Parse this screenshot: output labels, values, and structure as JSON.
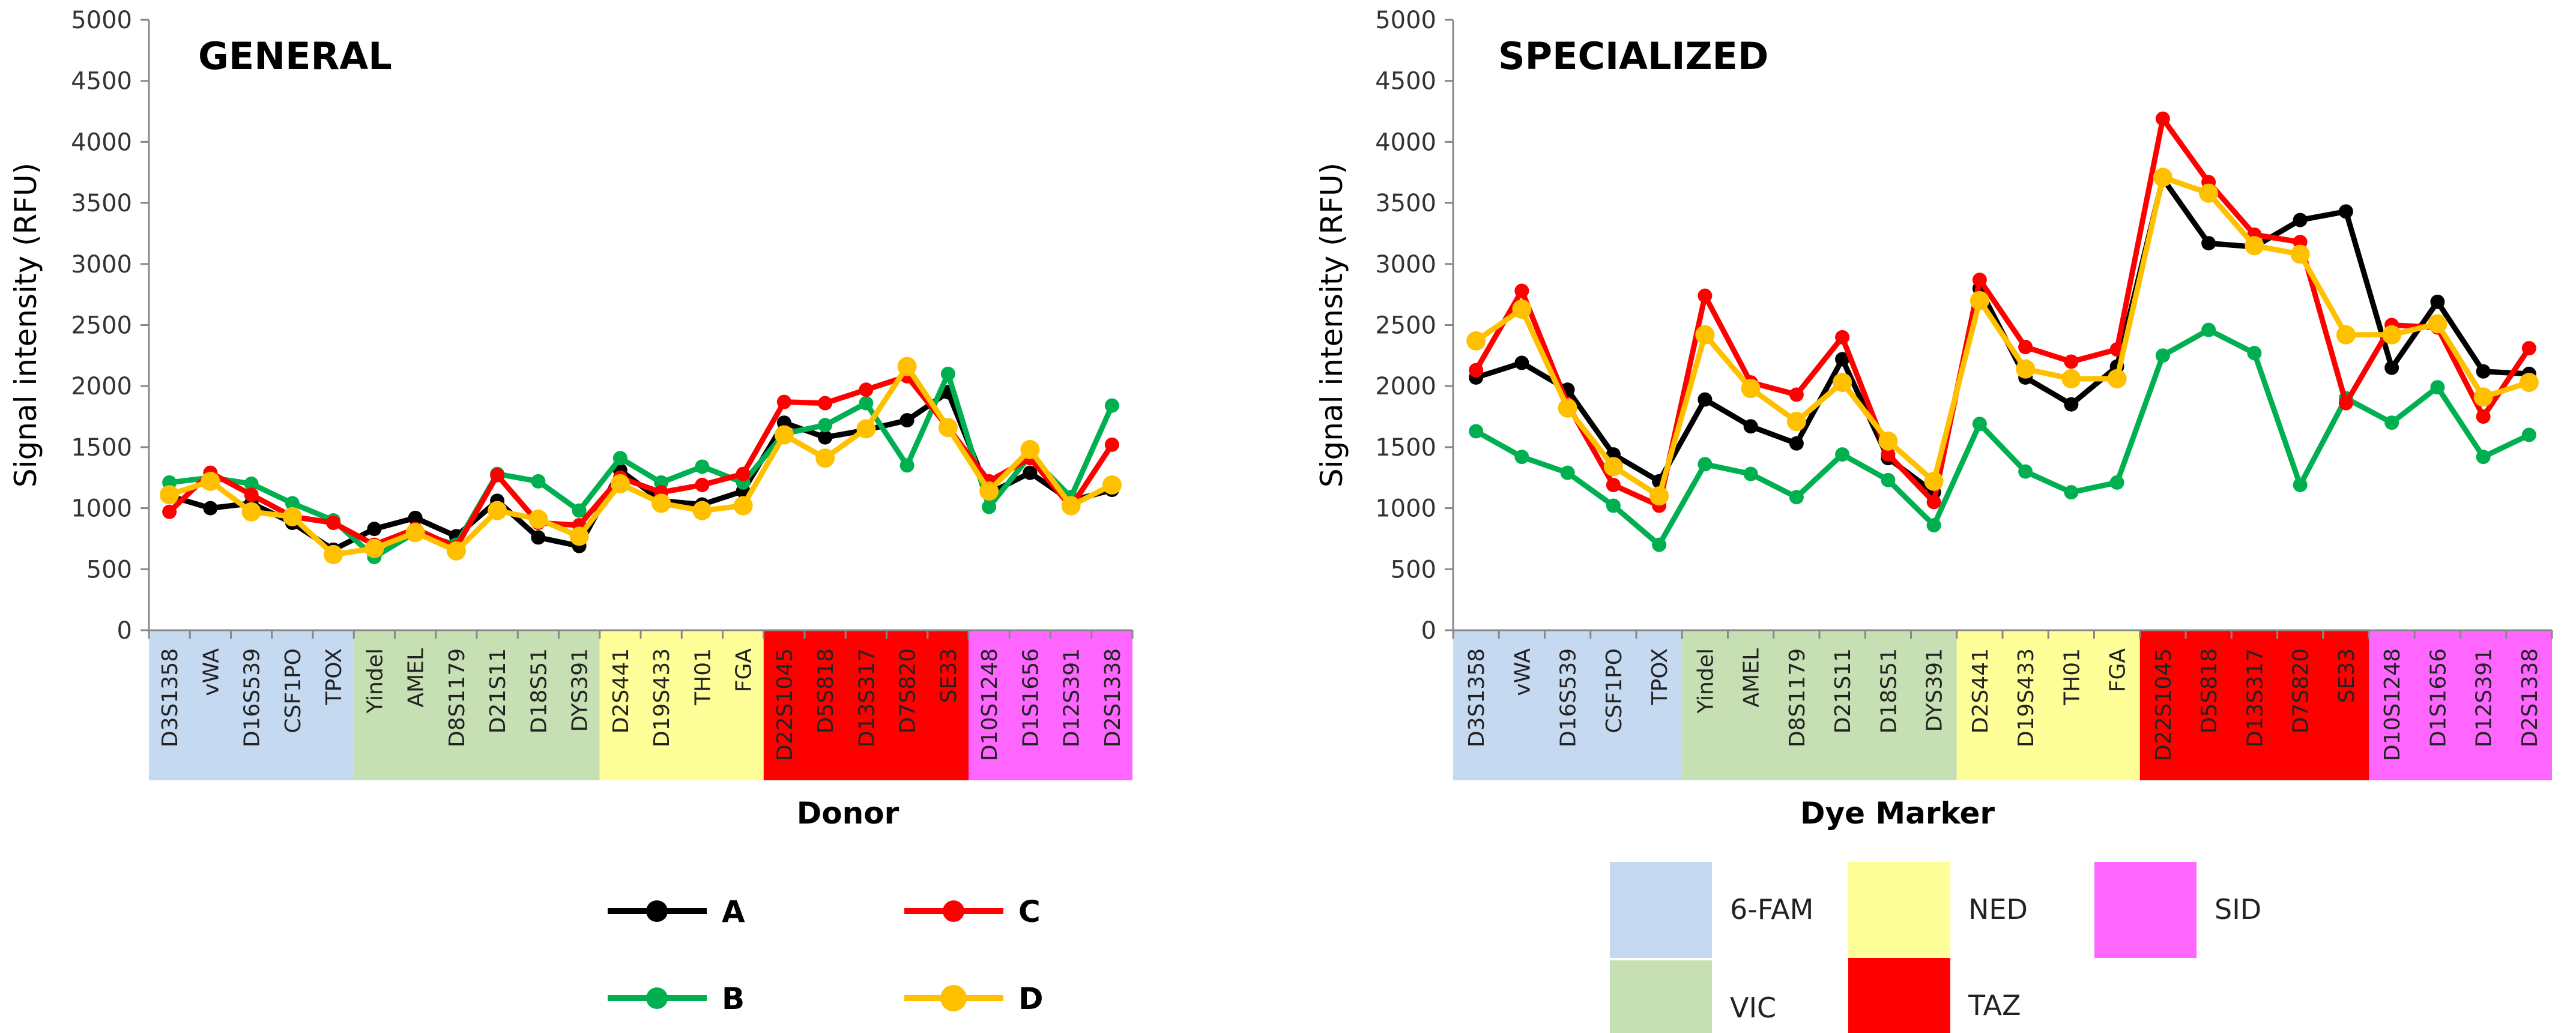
{
  "chart_data": [
    {
      "type": "line",
      "title": "GENERAL",
      "xlabel": "",
      "ylabel": "Signal intensity (RFU)",
      "ylim": [
        0,
        5000
      ],
      "yticks": [
        "0",
        "500",
        "1000",
        "1500",
        "2000",
        "2500",
        "3000",
        "3500",
        "4000",
        "4500",
        "5000"
      ],
      "categories": [
        "D3S1358",
        "vWA",
        "D16S539",
        "CSF1PO",
        "TPOX",
        "Yindel",
        "AMEL",
        "D8S1179",
        "D21S11",
        "D18S51",
        "DYS391",
        "D2S441",
        "D19S433",
        "TH01",
        "FGA",
        "D22S1045",
        "D5S818",
        "D13S317",
        "D7S820",
        "SE33",
        "D10S1248",
        "D1S1656",
        "D12S391",
        "D2S1338"
      ],
      "series": [
        {
          "name": "A",
          "color": "#000000",
          "values": [
            1100,
            1000,
            1040,
            880,
            660,
            830,
            920,
            770,
            1060,
            760,
            690,
            1310,
            1060,
            1030,
            1140,
            1700,
            1580,
            1640,
            1720,
            1950,
            1120,
            1290,
            1060,
            1150
          ]
        },
        {
          "name": "B",
          "color": "#00b050",
          "values": [
            1210,
            1250,
            1200,
            1040,
            900,
            600,
            800,
            700,
            1280,
            1220,
            980,
            1410,
            1210,
            1340,
            1210,
            1610,
            1680,
            1860,
            1350,
            2100,
            1010,
            1430,
            1090,
            1840
          ]
        },
        {
          "name": "C",
          "color": "#ff0000",
          "values": [
            970,
            1290,
            1110,
            930,
            880,
            700,
            830,
            680,
            1270,
            880,
            860,
            1250,
            1130,
            1190,
            1280,
            1870,
            1860,
            1970,
            2080,
            1660,
            1220,
            1410,
            1010,
            1520
          ]
        },
        {
          "name": "D",
          "color": "#ffc000",
          "values": [
            1110,
            1220,
            970,
            930,
            620,
            670,
            800,
            650,
            980,
            910,
            770,
            1200,
            1040,
            980,
            1020,
            1600,
            1410,
            1650,
            2160,
            1660,
            1140,
            1480,
            1020,
            1190
          ]
        }
      ]
    },
    {
      "type": "line",
      "title": "SPECIALIZED",
      "xlabel": "",
      "ylabel": "Signal intensity (RFU)",
      "ylim": [
        0,
        5000
      ],
      "yticks": [
        "0",
        "500",
        "1000",
        "1500",
        "2000",
        "2500",
        "3000",
        "3500",
        "4000",
        "4500",
        "5000"
      ],
      "categories": [
        "D3S1358",
        "vWA",
        "D16S539",
        "CSF1PO",
        "TPOX",
        "Yindel",
        "AMEL",
        "D8S1179",
        "D21S11",
        "D18S51",
        "DYS391",
        "D2S441",
        "D19S433",
        "TH01",
        "FGA",
        "D22S1045",
        "D5S818",
        "D13S317",
        "D7S820",
        "SE33",
        "D10S1248",
        "D1S1656",
        "D12S391",
        "D2S1338"
      ],
      "series": [
        {
          "name": "A",
          "color": "#000000",
          "values": [
            2070,
            2190,
            1970,
            1440,
            1220,
            1890,
            1670,
            1530,
            2220,
            1410,
            1130,
            2800,
            2070,
            1850,
            2160,
            3700,
            3170,
            3140,
            3360,
            3430,
            2150,
            2690,
            2120,
            2100
          ]
        },
        {
          "name": "B",
          "color": "#00b050",
          "values": [
            1630,
            1420,
            1290,
            1020,
            700,
            1360,
            1280,
            1090,
            1440,
            1230,
            860,
            1690,
            1300,
            1130,
            1210,
            2250,
            2460,
            2270,
            1190,
            1900,
            1700,
            1990,
            1420,
            1600
          ]
        },
        {
          "name": "C",
          "color": "#ff0000",
          "values": [
            2130,
            2780,
            1850,
            1190,
            1020,
            2740,
            2030,
            1930,
            2400,
            1440,
            1050,
            2870,
            2320,
            2200,
            2300,
            4190,
            3670,
            3240,
            3180,
            1860,
            2500,
            2480,
            1750,
            2310
          ]
        },
        {
          "name": "D",
          "color": "#ffc000",
          "values": [
            2370,
            2630,
            1820,
            1340,
            1100,
            2420,
            1980,
            1710,
            2030,
            1550,
            1220,
            2700,
            2140,
            2060,
            2060,
            3710,
            3580,
            3150,
            3080,
            2420,
            2420,
            2510,
            1910,
            2030
          ]
        }
      ]
    }
  ],
  "dye_groups": [
    {
      "name": "6-FAM",
      "color": "#c5d9f1",
      "count": 5
    },
    {
      "name": "VIC",
      "color": "#c6e0b4",
      "count": 6
    },
    {
      "name": "NED",
      "color": "#ffff99",
      "count": 4
    },
    {
      "name": "TAZ",
      "color": "#ff0000",
      "count": 5
    },
    {
      "name": "SID",
      "color": "#ff66ff",
      "count": 4
    }
  ],
  "donor_legend": {
    "title": "Donor",
    "items": [
      {
        "name": "A",
        "color": "#000000"
      },
      {
        "name": "B",
        "color": "#00b050"
      },
      {
        "name": "C",
        "color": "#ff0000"
      },
      {
        "name": "D",
        "color": "#ffc000"
      }
    ]
  },
  "dye_legend": {
    "title": "Dye Marker"
  }
}
